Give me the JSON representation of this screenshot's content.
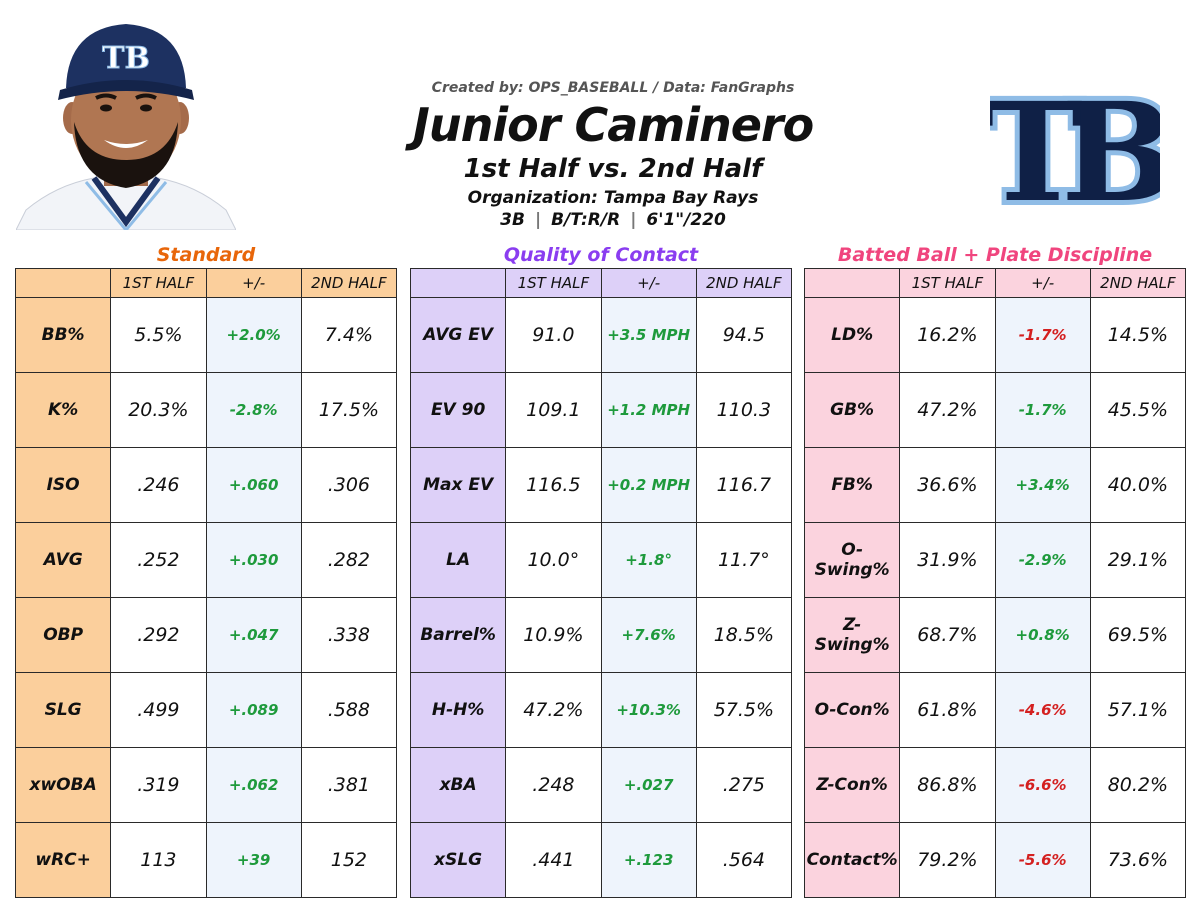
{
  "header": {
    "credit": "Created by: OPS_BASEBALL / Data: FanGraphs",
    "player_name": "Junior Caminero",
    "subtitle": "1st Half vs. 2nd Half",
    "organization": "Organization: Tampa Bay Rays",
    "position": "3B",
    "bats_throws": "B/T:R/R",
    "height_weight": "6'1\"/220",
    "separator": "|",
    "logo_text": "TB",
    "cap_logo_text": "TB",
    "colors": {
      "navy": "#0f2046",
      "light_blue": "#8fbce6"
    }
  },
  "columns": {
    "first": "1ST HALF",
    "diff": "+/-",
    "second": "2ND HALF"
  },
  "panels": {
    "standard": {
      "title": "Standard",
      "title_color": "#e8660a",
      "rows": [
        {
          "label": "BB%",
          "first": "5.5%",
          "diff": "+2.0%",
          "second": "7.4%",
          "trend": "pos"
        },
        {
          "label": "K%",
          "first": "20.3%",
          "diff": "-2.8%",
          "second": "17.5%",
          "trend": "pos"
        },
        {
          "label": "ISO",
          "first": ".246",
          "diff": "+.060",
          "second": ".306",
          "trend": "pos"
        },
        {
          "label": "AVG",
          "first": ".252",
          "diff": "+.030",
          "second": ".282",
          "trend": "pos"
        },
        {
          "label": "OBP",
          "first": ".292",
          "diff": "+.047",
          "second": ".338",
          "trend": "pos"
        },
        {
          "label": "SLG",
          "first": ".499",
          "diff": "+.089",
          "second": ".588",
          "trend": "pos"
        },
        {
          "label": "xwOBA",
          "first": ".319",
          "diff": "+.062",
          "second": ".381",
          "trend": "pos"
        },
        {
          "label": "wRC+",
          "first": "113",
          "diff": "+39",
          "second": "152",
          "trend": "pos"
        }
      ]
    },
    "quality": {
      "title": "Quality of Contact",
      "title_color": "#8a3df0",
      "rows": [
        {
          "label": "AVG EV",
          "first": "91.0",
          "diff": "+3.5 MPH",
          "second": "94.5",
          "trend": "pos"
        },
        {
          "label": "EV 90",
          "first": "109.1",
          "diff": "+1.2 MPH",
          "second": "110.3",
          "trend": "pos"
        },
        {
          "label": "Max EV",
          "first": "116.5",
          "diff": "+0.2 MPH",
          "second": "116.7",
          "trend": "pos"
        },
        {
          "label": "LA",
          "first": "10.0°",
          "diff": "+1.8°",
          "second": "11.7°",
          "trend": "pos"
        },
        {
          "label": "Barrel%",
          "first": "10.9%",
          "diff": "+7.6%",
          "second": "18.5%",
          "trend": "pos"
        },
        {
          "label": "H-H%",
          "first": "47.2%",
          "diff": "+10.3%",
          "second": "57.5%",
          "trend": "pos"
        },
        {
          "label": "xBA",
          "first": ".248",
          "diff": "+.027",
          "second": ".275",
          "trend": "pos"
        },
        {
          "label": "xSLG",
          "first": ".441",
          "diff": "+.123",
          "second": ".564",
          "trend": "pos"
        }
      ]
    },
    "batted": {
      "title": "Batted Ball + Plate Discipline",
      "title_color": "#f0457e",
      "rows": [
        {
          "label": "LD%",
          "first": "16.2%",
          "diff": "-1.7%",
          "second": "14.5%",
          "trend": "neg"
        },
        {
          "label": "GB%",
          "first": "47.2%",
          "diff": "-1.7%",
          "second": "45.5%",
          "trend": "pos"
        },
        {
          "label": "FB%",
          "first": "36.6%",
          "diff": "+3.4%",
          "second": "40.0%",
          "trend": "pos"
        },
        {
          "label": "O-Swing%",
          "first": "31.9%",
          "diff": "-2.9%",
          "second": "29.1%",
          "trend": "pos"
        },
        {
          "label": "Z-Swing%",
          "first": "68.7%",
          "diff": "+0.8%",
          "second": "69.5%",
          "trend": "pos"
        },
        {
          "label": "O-Con%",
          "first": "61.8%",
          "diff": "-4.6%",
          "second": "57.1%",
          "trend": "neg"
        },
        {
          "label": "Z-Con%",
          "first": "86.8%",
          "diff": "-6.6%",
          "second": "80.2%",
          "trend": "neg"
        },
        {
          "label": "Contact%",
          "first": "79.2%",
          "diff": "-5.6%",
          "second": "73.6%",
          "trend": "neg"
        }
      ]
    }
  }
}
